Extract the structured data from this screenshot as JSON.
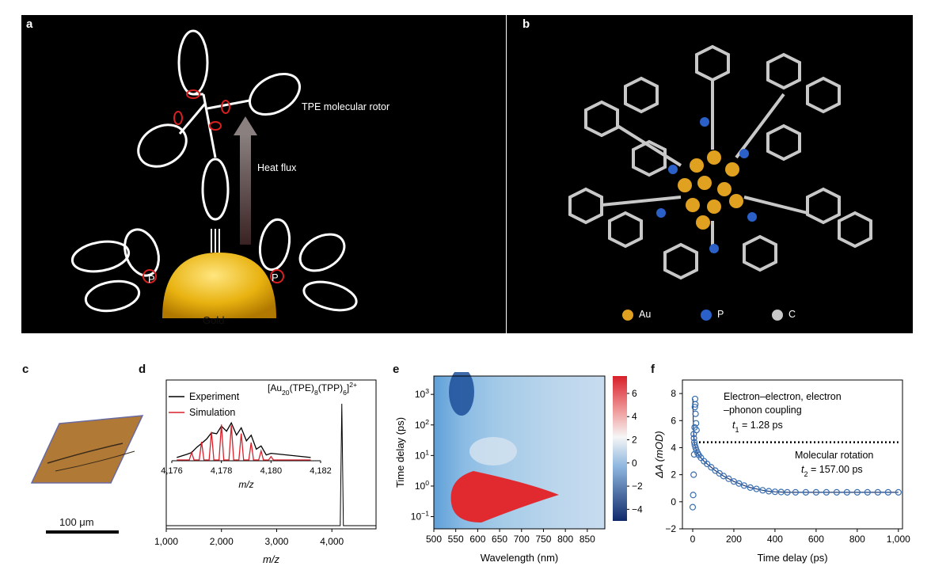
{
  "panels": {
    "a": {
      "label": "a",
      "rotor_label": "TPE molecular rotor",
      "heat_label": "Heat flux",
      "gold_label": "Gold",
      "p_label": "P"
    },
    "b": {
      "label": "b",
      "legend": [
        {
          "name": "Au",
          "color": "#e0a020"
        },
        {
          "name": "P",
          "color": "#2a60c8"
        },
        {
          "name": "C",
          "color": "#c8c8c8"
        }
      ]
    },
    "c": {
      "label": "c",
      "scale_label": "100 μm"
    },
    "d": {
      "label": "d",
      "formula": "[Au20(TPE)8(TPP)6]2+",
      "legend": [
        "Experiment",
        "Simulation"
      ],
      "colors": {
        "experiment": "#000000",
        "simulation": "#d8202a"
      }
    },
    "e": {
      "label": "e"
    },
    "f": {
      "label": "f",
      "annot1a": "Electron–electron, electron",
      "annot1b": "–phonon coupling",
      "t1": "= 1.28 ps",
      "annot2": "Molecular rotation",
      "t2": "= 157.00 ps"
    }
  },
  "chart_data": [
    {
      "id": "d",
      "type": "line",
      "xlabel": "m/z",
      "xlim": [
        1000,
        4800
      ],
      "x_ticks": [
        "1,000",
        "2,000",
        "3,000",
        "4,000"
      ],
      "series": [
        {
          "name": "Experiment",
          "peaks": [
            [
              4180,
              1.0
            ]
          ]
        }
      ],
      "inset": {
        "xlabel": "m/z",
        "x_ticks": [
          "4,176",
          "4,178",
          "4,180",
          "4,182"
        ],
        "xlim": [
          4176,
          4182
        ],
        "series": [
          {
            "name": "Experiment",
            "x": [
              4176.8,
              4177.2,
              4177.6,
              4178.0,
              4178.4,
              4178.8,
              4179.2,
              4179.6,
              4180.0
            ],
            "y": [
              0.2,
              0.42,
              0.68,
              0.84,
              0.92,
              0.8,
              0.62,
              0.36,
              0.18
            ]
          },
          {
            "name": "Simulation",
            "x": [
              4176.8,
              4177.2,
              4177.6,
              4178.0,
              4178.4,
              4178.8,
              4179.2,
              4179.6,
              4180.0
            ],
            "y": [
              0.2,
              0.46,
              0.7,
              0.88,
              0.86,
              0.66,
              0.44,
              0.24,
              0.1
            ]
          }
        ]
      }
    },
    {
      "id": "e",
      "type": "heatmap",
      "xlabel": "Wavelength (nm)",
      "ylabel": "Time delay (ps)",
      "x_ticks": [
        "500",
        "550",
        "600",
        "650",
        "700",
        "750",
        "800",
        "850"
      ],
      "y_ticks": [
        "10-1",
        "100",
        "101",
        "102",
        "103"
      ],
      "colorbar_ticks": [
        "6",
        "4",
        "2",
        "0",
        "−2",
        "−4"
      ],
      "colorbar_range": [
        -5,
        7.5
      ]
    },
    {
      "id": "f",
      "type": "scatter",
      "xlabel": "Time delay (ps)",
      "ylabel": "ΔA (mOD)",
      "x_ticks": [
        "0",
        "200",
        "400",
        "600",
        "800",
        "1,000"
      ],
      "y_ticks": [
        "−2",
        "0",
        "2",
        "4",
        "6",
        "8"
      ],
      "xlim": [
        -50,
        1020
      ],
      "ylim": [
        -2,
        9
      ],
      "dotted_level": 4.4,
      "series": [
        {
          "name": "data",
          "x": [
            -4,
            -3,
            -2,
            -1,
            0,
            0.5,
            1,
            1.5,
            2,
            3,
            4,
            5,
            6,
            8,
            10,
            14,
            18,
            24,
            30,
            40,
            55,
            70,
            90,
            110,
            130,
            150,
            175,
            200,
            225,
            250,
            280,
            310,
            340,
            370,
            400,
            430,
            460,
            500,
            550,
            600,
            650,
            700,
            750,
            800,
            850,
            900,
            950,
            1000
          ],
          "y": [
            -0.4,
            0.5,
            2.0,
            3.5,
            5.5,
            7.0,
            7.6,
            7.2,
            6.5,
            5.8,
            5.3,
            5.0,
            4.7,
            4.4,
            4.2,
            4.0,
            3.8,
            3.6,
            3.45,
            3.25,
            3.0,
            2.8,
            2.55,
            2.3,
            2.1,
            1.9,
            1.7,
            1.5,
            1.35,
            1.2,
            1.05,
            0.95,
            0.85,
            0.78,
            0.74,
            0.72,
            0.7,
            0.7,
            0.7,
            0.7,
            0.7,
            0.7,
            0.7,
            0.7,
            0.7,
            0.7,
            0.7,
            0.7
          ]
        }
      ],
      "fit_color": "#1e3a78",
      "marker_color": "#3a6fb0"
    }
  ]
}
